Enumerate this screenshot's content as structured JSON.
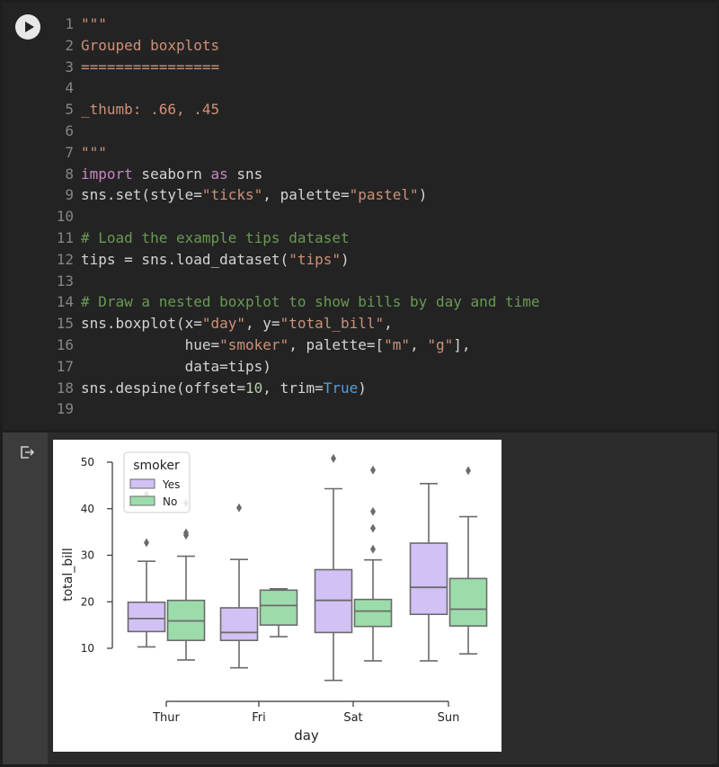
{
  "notebook": {
    "code_lines": [
      {
        "n": "1",
        "parts": [
          {
            "t": "\"\"\"",
            "c": "str"
          }
        ]
      },
      {
        "n": "2",
        "parts": [
          {
            "t": "Grouped boxplots",
            "c": "str"
          }
        ]
      },
      {
        "n": "3",
        "parts": [
          {
            "t": "================",
            "c": "str"
          }
        ]
      },
      {
        "n": "4",
        "parts": []
      },
      {
        "n": "5",
        "parts": [
          {
            "t": "_thumb: .66, .45",
            "c": "str"
          }
        ]
      },
      {
        "n": "6",
        "parts": []
      },
      {
        "n": "7",
        "parts": [
          {
            "t": "\"\"\"",
            "c": "str"
          }
        ]
      },
      {
        "n": "8",
        "parts": [
          {
            "t": "import",
            "c": "kw"
          },
          {
            "t": " seaborn ",
            "c": ""
          },
          {
            "t": "as",
            "c": "kw"
          },
          {
            "t": " sns",
            "c": ""
          }
        ]
      },
      {
        "n": "9",
        "parts": [
          {
            "t": "sns.set(style=",
            "c": ""
          },
          {
            "t": "\"ticks\"",
            "c": "str"
          },
          {
            "t": ", palette=",
            "c": ""
          },
          {
            "t": "\"pastel\"",
            "c": "str"
          },
          {
            "t": ")",
            "c": ""
          }
        ]
      },
      {
        "n": "10",
        "parts": []
      },
      {
        "n": "11",
        "parts": [
          {
            "t": "# Load the example tips dataset",
            "c": "cm"
          }
        ]
      },
      {
        "n": "12",
        "parts": [
          {
            "t": "tips = sns.load_dataset(",
            "c": ""
          },
          {
            "t": "\"tips\"",
            "c": "str"
          },
          {
            "t": ")",
            "c": ""
          }
        ]
      },
      {
        "n": "13",
        "parts": []
      },
      {
        "n": "14",
        "parts": [
          {
            "t": "# Draw a nested boxplot to show bills by day and time",
            "c": "cm"
          }
        ]
      },
      {
        "n": "15",
        "parts": [
          {
            "t": "sns.boxplot(x=",
            "c": ""
          },
          {
            "t": "\"day\"",
            "c": "str"
          },
          {
            "t": ", y=",
            "c": ""
          },
          {
            "t": "\"total_bill\"",
            "c": "str"
          },
          {
            "t": ",",
            "c": ""
          }
        ]
      },
      {
        "n": "16",
        "parts": [
          {
            "t": "            hue=",
            "c": ""
          },
          {
            "t": "\"smoker\"",
            "c": "str"
          },
          {
            "t": ", palette=[",
            "c": ""
          },
          {
            "t": "\"m\"",
            "c": "str"
          },
          {
            "t": ", ",
            "c": ""
          },
          {
            "t": "\"g\"",
            "c": "str"
          },
          {
            "t": "],",
            "c": ""
          }
        ]
      },
      {
        "n": "17",
        "parts": [
          {
            "t": "            data=tips)",
            "c": ""
          }
        ]
      },
      {
        "n": "18",
        "parts": [
          {
            "t": "sns.despine(offset=",
            "c": ""
          },
          {
            "t": "10",
            "c": "num"
          },
          {
            "t": ", trim=",
            "c": ""
          },
          {
            "t": "True",
            "c": "bool"
          },
          {
            "t": ")",
            "c": ""
          }
        ]
      },
      {
        "n": "19",
        "parts": []
      }
    ],
    "icons": {
      "run": "play-icon",
      "output": "output-redirect-icon"
    },
    "colors": {
      "yes": "#d2c1f5",
      "no": "#9cdcab",
      "line": "#6b6b6b",
      "code_bg": "#232323"
    }
  },
  "chart_data": {
    "type": "boxplot",
    "xlabel": "day",
    "ylabel": "total_bill",
    "categories": [
      "Thur",
      "Fri",
      "Sat",
      "Sun"
    ],
    "hue_title": "smoker",
    "legend": [
      "Yes",
      "No"
    ],
    "legend_position": "upper-left",
    "yticks": [
      10,
      20,
      30,
      40,
      50
    ],
    "ylim": [
      3,
      51
    ],
    "series": [
      {
        "name": "Yes",
        "boxes": [
          {
            "whislo": 10.3,
            "q1": 13.6,
            "med": 16.4,
            "q3": 19.9,
            "whishi": 28.7,
            "fliers": [
              32.7,
              43.1
            ]
          },
          {
            "whislo": 5.8,
            "q1": 11.7,
            "med": 13.4,
            "q3": 18.7,
            "whishi": 29.1,
            "fliers": [
              40.2
            ]
          },
          {
            "whislo": 3.1,
            "q1": 13.4,
            "med": 20.3,
            "q3": 26.9,
            "whishi": 44.3,
            "fliers": [
              50.8
            ]
          },
          {
            "whislo": 7.3,
            "q1": 17.3,
            "med": 23.1,
            "q3": 32.6,
            "whishi": 45.4,
            "fliers": []
          }
        ]
      },
      {
        "name": "No",
        "boxes": [
          {
            "whislo": 7.5,
            "q1": 11.7,
            "med": 15.9,
            "q3": 20.3,
            "whishi": 29.8,
            "fliers": [
              34.3,
              34.8,
              41.2
            ]
          },
          {
            "whislo": 12.5,
            "q1": 15.0,
            "med": 19.2,
            "q3": 22.5,
            "whishi": 22.8,
            "fliers": []
          },
          {
            "whislo": 7.3,
            "q1": 14.7,
            "med": 18.0,
            "q3": 20.5,
            "whishi": 29.0,
            "fliers": [
              31.3,
              35.8,
              39.4,
              48.3
            ]
          },
          {
            "whislo": 8.8,
            "q1": 14.8,
            "med": 18.4,
            "q3": 25.0,
            "whishi": 38.3,
            "fliers": [
              48.2
            ]
          }
        ]
      }
    ]
  }
}
